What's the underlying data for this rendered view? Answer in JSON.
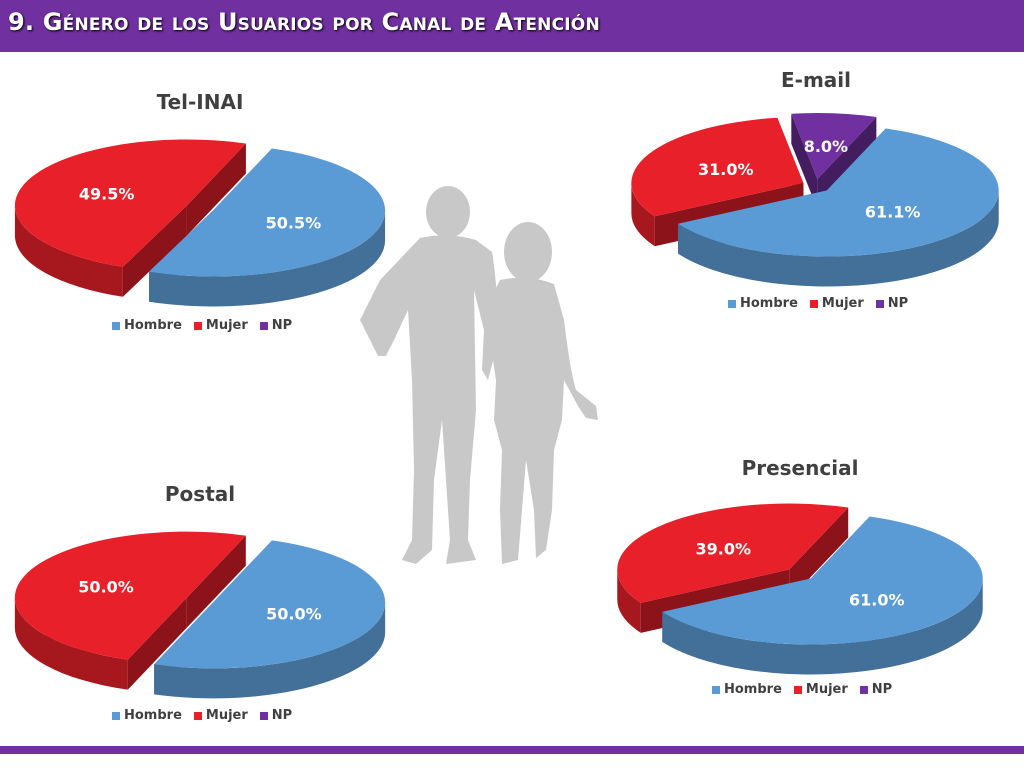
{
  "header": {
    "title": "9. Género de los Usuarios por Canal de Atención"
  },
  "colors": {
    "hombre": "#5b9bd5",
    "mujer": "#e8202a",
    "np": "#7030a0",
    "accent": "#7030a0"
  },
  "legend_labels": [
    "Hombre",
    "Mujer",
    "NP"
  ],
  "chart_data": [
    {
      "type": "pie",
      "title": "Tel-INAI",
      "categories": [
        "Hombre",
        "Mujer",
        "NP"
      ],
      "values": [
        50.5,
        49.5,
        0
      ],
      "labels": [
        "50.5%",
        "49.5%",
        ""
      ],
      "legend": "bottom"
    },
    {
      "type": "pie",
      "title": "E-mail",
      "categories": [
        "Hombre",
        "Mujer",
        "NP"
      ],
      "values": [
        61.1,
        31.0,
        8.0
      ],
      "labels": [
        "61.1%",
        "31.0%",
        "8.0%"
      ],
      "legend": "bottom"
    },
    {
      "type": "pie",
      "title": "Postal",
      "categories": [
        "Hombre",
        "Mujer",
        "NP"
      ],
      "values": [
        50.0,
        50.0,
        0
      ],
      "labels": [
        "50.0%",
        "50.0%",
        ""
      ],
      "legend": "bottom"
    },
    {
      "type": "pie",
      "title": "Presencial",
      "categories": [
        "Hombre",
        "Mujer",
        "NP"
      ],
      "values": [
        61.0,
        39.0,
        0
      ],
      "labels": [
        "61.0%",
        "39.0%",
        ""
      ],
      "legend": "bottom"
    }
  ]
}
